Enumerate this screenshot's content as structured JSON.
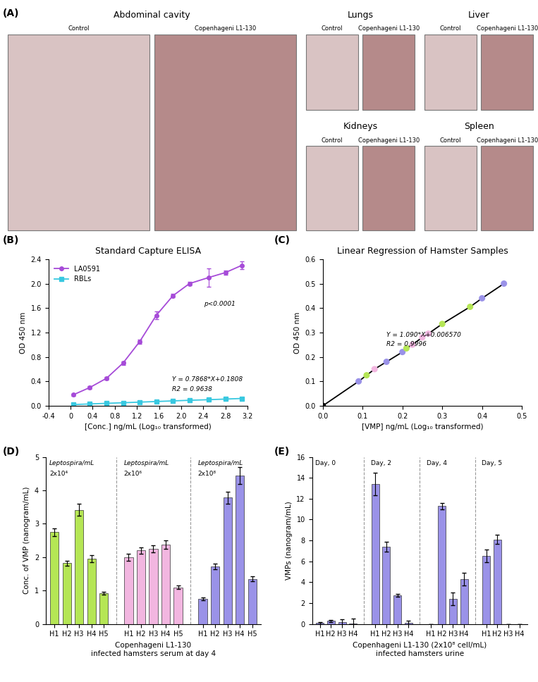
{
  "panel_a": {
    "panel": "(A)",
    "photos": [
      {
        "title": "Abdominal cavity",
        "labels": [
          "Control",
          "Copenhageni L1-130"
        ]
      },
      {
        "title": "Lungs",
        "labels": [
          "Control",
          "Copenhageni L1-130"
        ]
      },
      {
        "title": "Liver",
        "labels": [
          "Control",
          "Copenhageni L1-130"
        ]
      },
      {
        "title": "Kidneys",
        "labels": [
          "Control",
          "Copenhageni L1-130"
        ]
      },
      {
        "title": "Spleen",
        "labels": [
          "Control",
          "Copenhageni L1-130"
        ]
      }
    ]
  },
  "chart_data": [
    {
      "panel": "(B)",
      "type": "line",
      "title": "Standard Capture ELISA",
      "x_label": "[Conc.] ng/mL (Log₁₀ transformed)",
      "y_label": "OD 450 nm",
      "xlim": [
        -0.4,
        3.2
      ],
      "xticks": [
        -0.4,
        0,
        0.4,
        0.8,
        1.2,
        1.6,
        2.0,
        2.4,
        2.8,
        3.2
      ],
      "ylim": [
        0.0,
        2.4
      ],
      "yticks": [
        0.0,
        0.4,
        0.8,
        1.2,
        1.6,
        2.0,
        2.4
      ],
      "legend": "upper left",
      "annotations": [
        "p<0.0001",
        "Y = 0.7868*X+0.1808",
        "R2 = 0.9638"
      ],
      "series": [
        {
          "name": "LA0591",
          "color": "#a64bd8",
          "marker": "circle",
          "x": [
            0.05,
            0.35,
            0.65,
            0.95,
            1.25,
            1.55,
            1.85,
            2.15,
            2.5,
            2.8,
            3.1
          ],
          "values": [
            0.18,
            0.3,
            0.45,
            0.7,
            1.05,
            1.48,
            1.8,
            2.0,
            2.1,
            2.18,
            2.3
          ],
          "errors": [
            0.02,
            0.02,
            0.02,
            0.03,
            0.03,
            0.06,
            0.03,
            0.03,
            0.15,
            0.03,
            0.06
          ]
        },
        {
          "name": "RBLs",
          "color": "#38c8e0",
          "marker": "square",
          "x": [
            0.05,
            0.35,
            0.65,
            0.95,
            1.25,
            1.55,
            1.85,
            2.15,
            2.5,
            2.8,
            3.1
          ],
          "values": [
            0.02,
            0.03,
            0.04,
            0.05,
            0.06,
            0.07,
            0.08,
            0.09,
            0.1,
            0.11,
            0.12
          ],
          "errors": [
            0.01,
            0.01,
            0.01,
            0.01,
            0.01,
            0.01,
            0.01,
            0.01,
            0.01,
            0.01,
            0.01
          ]
        }
      ]
    },
    {
      "panel": "(C)",
      "type": "scatter",
      "title": "Linear Regression of Hamster Samples",
      "x_label": "[VMP] ng/mL (Log₁₀ transformed)",
      "y_label": "OD 450 nm",
      "xlim": [
        0.0,
        0.5
      ],
      "xticks": [
        0.0,
        0.1,
        0.2,
        0.3,
        0.4,
        0.5
      ],
      "ylim": [
        0.0,
        0.6
      ],
      "yticks": [
        0.0,
        0.1,
        0.2,
        0.3,
        0.4,
        0.5,
        0.6
      ],
      "line_style": "solid",
      "annotations": [
        "Y = 1.090*X+0.006570",
        "R2 = 0.9996"
      ],
      "x": [
        0.0,
        0.09,
        0.11,
        0.13,
        0.16,
        0.2,
        0.21,
        0.225,
        0.25,
        0.265,
        0.3,
        0.37,
        0.4,
        0.455
      ],
      "values": [
        0.0,
        0.1,
        0.125,
        0.15,
        0.18,
        0.22,
        0.235,
        0.25,
        0.28,
        0.295,
        0.335,
        0.405,
        0.44,
        0.5
      ],
      "colors": [
        "#000000",
        "#9a92e8",
        "#b5e655",
        "#f2b6e0",
        "#9a92e8",
        "#9a92e8",
        "#b5e655",
        "#f2b6e0",
        "#f2b6e0",
        "#f2b6e0",
        "#b5e655",
        "#b5e655",
        "#9a92e8",
        "#9a92e8"
      ]
    },
    {
      "panel": "(D)",
      "type": "bar",
      "x_label": "Copenhageni L1-130\ninfected hamsters serum at day 4",
      "y_label": "Conc. of VMP (nanogram/mL)",
      "ylim": [
        0,
        5
      ],
      "yticks": [
        0,
        1,
        2,
        3,
        4,
        5
      ],
      "groups": [
        {
          "label_lines": [
            "Leptospira/mL",
            "2x10⁴"
          ],
          "color": "#b5e655",
          "categories": [
            "H1",
            "H2",
            "H3",
            "H4",
            "H5"
          ],
          "values": [
            2.75,
            1.82,
            3.42,
            1.95,
            0.92
          ],
          "errors": [
            0.12,
            0.08,
            0.18,
            0.1,
            0.05
          ]
        },
        {
          "label_lines": [
            "Leptospira/mL",
            "2x10⁶"
          ],
          "color": "#f2b6e0",
          "categories": [
            "H1",
            "H2",
            "H3",
            "H4",
            "H5"
          ],
          "values": [
            2.0,
            2.2,
            2.25,
            2.38,
            1.1
          ],
          "errors": [
            0.1,
            0.1,
            0.1,
            0.12,
            0.06
          ]
        },
        {
          "label_lines": [
            "Leptospira/mL",
            "2x10⁸"
          ],
          "color": "#9a92e8",
          "categories": [
            "H1",
            "H2",
            "H3",
            "H4",
            "H5"
          ],
          "values": [
            0.75,
            1.72,
            3.78,
            4.45,
            1.35
          ],
          "errors": [
            0.04,
            0.08,
            0.18,
            0.25,
            0.07
          ]
        }
      ]
    },
    {
      "panel": "(E)",
      "type": "bar",
      "x_label": "Copenhageni L1-130 (2x10⁸ cell/mL)\ninfected hamsters urine",
      "y_label": "VMPs (nanogram/mL)",
      "ylim": [
        0,
        16
      ],
      "yticks": [
        0,
        2,
        4,
        6,
        8,
        10,
        12,
        14,
        16
      ],
      "groups": [
        {
          "label_lines": [
            "Day, 0"
          ],
          "color": "#9a92e8",
          "categories": [
            "H1",
            "H2",
            "H3",
            "H4"
          ],
          "values": [
            0.1,
            0.3,
            0.15,
            0.05
          ],
          "errors": [
            0.1,
            0.1,
            0.3,
            0.5
          ]
        },
        {
          "label_lines": [
            "Day, 2"
          ],
          "color": "#9a92e8",
          "categories": [
            "H1",
            "H2",
            "H3",
            "H4"
          ],
          "values": [
            13.4,
            7.4,
            2.75,
            0.1
          ],
          "errors": [
            1.1,
            0.45,
            0.15,
            0.2
          ]
        },
        {
          "label_lines": [
            "Day, 4"
          ],
          "color": "#9a92e8",
          "categories": [
            "H1",
            "H2",
            "H3",
            "H4"
          ],
          "values": [
            0,
            11.3,
            2.4,
            4.3
          ],
          "errors": [
            0,
            0.3,
            0.6,
            0.6
          ]
        },
        {
          "label_lines": [
            "Day, 5"
          ],
          "color": "#9a92e8",
          "categories": [
            "H1",
            "H2",
            "H3",
            "H4"
          ],
          "values": [
            6.5,
            8.1,
            0,
            0
          ],
          "errors": [
            0.6,
            0.45,
            0,
            0
          ]
        }
      ]
    }
  ]
}
